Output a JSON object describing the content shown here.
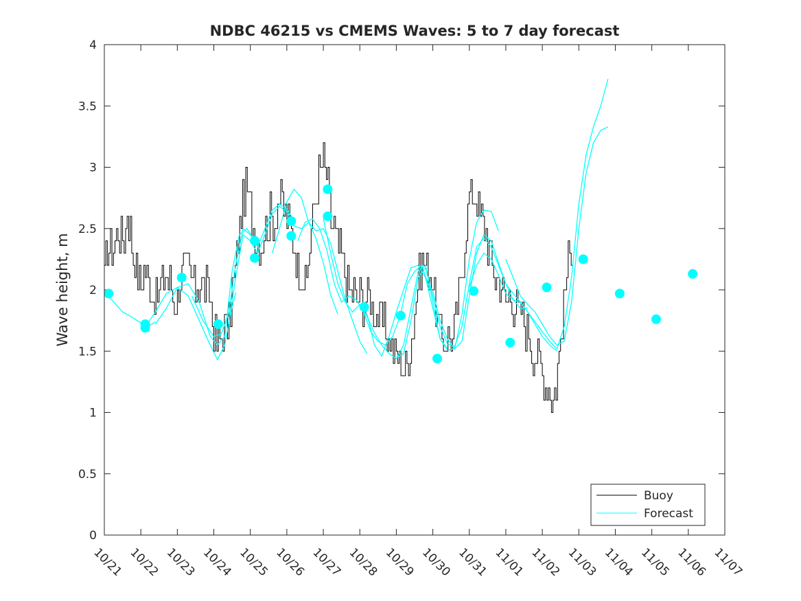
{
  "chart_data": {
    "type": "line",
    "title": "NDBC 46215 vs CMEMS Waves: 5 to 7 day forecast",
    "xlabel": "",
    "ylabel": "Wave height, m",
    "xlim": [
      0,
      17
    ],
    "ylim": [
      0,
      4
    ],
    "yticks": [
      0,
      0.5,
      1,
      1.5,
      2,
      2.5,
      3,
      3.5,
      4
    ],
    "ytick_labels": [
      "0",
      "0.5",
      "1",
      "1.5",
      "2",
      "2.5",
      "3",
      "3.5",
      "4"
    ],
    "xticks": [
      0,
      1,
      2,
      3,
      4,
      5,
      6,
      7,
      8,
      9,
      10,
      11,
      12,
      13,
      14,
      15,
      16,
      17
    ],
    "xtick_labels": [
      "10/21",
      "10/22",
      "10/23",
      "10/24",
      "10/25",
      "10/26",
      "10/27",
      "10/28",
      "10/29",
      "10/30",
      "10/31",
      "11/01",
      "11/02",
      "11/03",
      "11/04",
      "11/05",
      "11/06",
      "11/07"
    ],
    "x_unit": "days since 10/21 00:00",
    "legend": {
      "position": "bottom-right",
      "entries": [
        "Buoy",
        "Forecast"
      ]
    },
    "colors": {
      "buoy": "#000000",
      "forecast": "#00ffff",
      "axes": "#262626"
    },
    "buoy_anchors": [
      [
        0.0,
        2.1
      ],
      [
        0.1,
        2.4
      ],
      [
        0.2,
        2.3
      ],
      [
        0.3,
        2.4
      ],
      [
        0.45,
        2.5
      ],
      [
        0.55,
        2.4
      ],
      [
        0.62,
        2.7
      ],
      [
        0.7,
        2.5
      ],
      [
        0.8,
        2.3
      ],
      [
        0.9,
        2.1
      ],
      [
        1.0,
        2.0
      ],
      [
        1.1,
        2.2
      ],
      [
        1.2,
        2.1
      ],
      [
        1.35,
        1.9
      ],
      [
        1.5,
        2.0
      ],
      [
        1.65,
        2.1
      ],
      [
        1.8,
        2.05
      ],
      [
        1.95,
        1.9
      ],
      [
        2.1,
        2.1
      ],
      [
        2.2,
        2.2
      ],
      [
        2.35,
        2.1
      ],
      [
        2.5,
        2.0
      ],
      [
        2.65,
        2.1
      ],
      [
        2.8,
        2.0
      ],
      [
        2.9,
        1.9
      ],
      [
        3.0,
        1.65
      ],
      [
        3.1,
        1.55
      ],
      [
        3.2,
        1.62
      ],
      [
        3.3,
        1.75
      ],
      [
        3.4,
        1.65
      ],
      [
        3.5,
        2.0
      ],
      [
        3.6,
        2.2
      ],
      [
        3.7,
        2.5
      ],
      [
        3.8,
        2.75
      ],
      [
        3.9,
        2.8
      ],
      [
        4.0,
        2.65
      ],
      [
        4.05,
        2.5
      ],
      [
        4.15,
        2.45
      ],
      [
        4.25,
        2.35
      ],
      [
        4.35,
        2.45
      ],
      [
        4.45,
        2.55
      ],
      [
        4.55,
        2.6
      ],
      [
        4.65,
        2.5
      ],
      [
        4.75,
        2.7
      ],
      [
        4.85,
        2.8
      ],
      [
        4.95,
        2.6
      ],
      [
        5.0,
        2.6
      ],
      [
        5.1,
        2.5
      ],
      [
        5.2,
        2.35
      ],
      [
        5.3,
        2.2
      ],
      [
        5.4,
        2.1
      ],
      [
        5.5,
        2.0
      ],
      [
        5.6,
        2.3
      ],
      [
        5.7,
        2.6
      ],
      [
        5.8,
        2.8
      ],
      [
        5.9,
        3.0
      ],
      [
        6.0,
        3.05
      ],
      [
        6.1,
        2.9
      ],
      [
        6.2,
        2.6
      ],
      [
        6.3,
        2.5
      ],
      [
        6.4,
        2.35
      ],
      [
        6.5,
        2.25
      ],
      [
        6.6,
        2.1
      ],
      [
        6.7,
        2.0
      ],
      [
        6.8,
        2.0
      ],
      [
        6.9,
        1.95
      ],
      [
        7.0,
        1.95
      ],
      [
        7.1,
        1.9
      ],
      [
        7.2,
        1.95
      ],
      [
        7.3,
        1.9
      ],
      [
        7.4,
        1.85
      ],
      [
        7.5,
        1.8
      ],
      [
        7.6,
        1.75
      ],
      [
        7.7,
        1.7
      ],
      [
        7.8,
        1.6
      ],
      [
        7.9,
        1.5
      ],
      [
        8.0,
        1.45
      ],
      [
        8.1,
        1.4
      ],
      [
        8.2,
        1.35
      ],
      [
        8.3,
        1.4
      ],
      [
        8.4,
        1.6
      ],
      [
        8.5,
        1.85
      ],
      [
        8.6,
        2.1
      ],
      [
        8.7,
        2.2
      ],
      [
        8.8,
        2.2
      ],
      [
        8.9,
        2.15
      ],
      [
        9.0,
        2.05
      ],
      [
        9.1,
        1.8
      ],
      [
        9.2,
        1.65
      ],
      [
        9.3,
        1.6
      ],
      [
        9.4,
        1.6
      ],
      [
        9.5,
        1.6
      ],
      [
        9.6,
        1.65
      ],
      [
        9.7,
        1.9
      ],
      [
        9.8,
        2.2
      ],
      [
        9.9,
        2.55
      ],
      [
        10.0,
        2.75
      ],
      [
        10.1,
        2.8
      ],
      [
        10.2,
        2.7
      ],
      [
        10.3,
        2.6
      ],
      [
        10.4,
        2.55
      ],
      [
        10.5,
        2.4
      ],
      [
        10.6,
        2.2
      ],
      [
        10.7,
        2.1
      ],
      [
        10.8,
        2.05
      ],
      [
        10.9,
        2.0
      ],
      [
        11.0,
        1.95
      ],
      [
        11.1,
        1.95
      ],
      [
        11.2,
        1.9
      ],
      [
        11.3,
        1.85
      ],
      [
        11.4,
        1.8
      ],
      [
        11.5,
        1.75
      ],
      [
        11.6,
        1.65
      ],
      [
        11.7,
        1.55
      ],
      [
        11.8,
        1.45
      ],
      [
        11.9,
        1.4
      ],
      [
        12.0,
        1.3
      ],
      [
        12.1,
        1.25
      ],
      [
        12.2,
        1.2
      ],
      [
        12.28,
        1.1
      ],
      [
        12.4,
        1.3
      ],
      [
        12.5,
        1.6
      ],
      [
        12.6,
        1.9
      ],
      [
        12.7,
        2.2
      ],
      [
        12.8,
        2.4
      ],
      [
        12.85,
        2.35
      ]
    ],
    "forecast_series": [
      {
        "name": "Forecast",
        "x": [
          -0.1,
          0.0,
          0.2,
          0.5,
          0.8,
          1.0,
          1.2,
          1.4
        ],
        "y": [
          2.0,
          1.97,
          1.92,
          1.82,
          1.77,
          1.73,
          1.7,
          1.74
        ]
      },
      {
        "name": "Forecast",
        "x": [
          1.0,
          1.15,
          1.4,
          1.7,
          2.0,
          2.3,
          2.6,
          2.9,
          3.1,
          3.3,
          3.45,
          3.6
        ],
        "y": [
          1.7,
          1.71,
          1.82,
          1.97,
          2.02,
          1.95,
          1.75,
          1.55,
          1.43,
          1.55,
          1.8,
          1.98
        ]
      },
      {
        "name": "Forecast",
        "x": [
          1.4,
          1.7,
          2.0,
          2.3,
          2.6,
          2.9,
          3.1,
          3.3,
          3.5,
          3.7,
          3.9,
          4.0,
          4.2
        ],
        "y": [
          1.72,
          1.85,
          2.02,
          2.05,
          1.9,
          1.62,
          1.55,
          1.62,
          2.15,
          2.45,
          2.5,
          2.46,
          2.35
        ]
      },
      {
        "name": "Forecast",
        "x": [
          2.4,
          2.7,
          3.0,
          3.2,
          3.4,
          3.6,
          3.8,
          4.0,
          4.2,
          4.4,
          4.6,
          4.8,
          5.0,
          5.2
        ],
        "y": [
          1.95,
          1.75,
          1.62,
          1.64,
          1.8,
          2.2,
          2.5,
          2.45,
          2.35,
          2.5,
          2.65,
          2.7,
          2.66,
          2.56
        ]
      },
      {
        "name": "Forecast",
        "x": [
          3.4,
          3.6,
          3.8,
          4.0,
          4.2,
          4.4,
          4.6,
          4.8,
          5.0,
          5.2,
          5.4,
          5.6,
          5.8,
          6.0,
          6.2,
          6.4
        ],
        "y": [
          1.72,
          2.1,
          2.45,
          2.4,
          2.3,
          2.45,
          2.62,
          2.68,
          2.64,
          2.52,
          2.5,
          2.55,
          2.42,
          2.22,
          1.96,
          1.8
        ]
      },
      {
        "name": "Forecast",
        "x": [
          4.6,
          4.8,
          5.0,
          5.2,
          5.4,
          5.6,
          5.8,
          6.0,
          6.2,
          6.4,
          6.6,
          6.8,
          7.0,
          7.2
        ],
        "y": [
          2.3,
          2.5,
          2.72,
          2.82,
          2.75,
          2.55,
          2.48,
          2.5,
          2.38,
          2.15,
          1.92,
          1.75,
          1.58,
          1.48
        ]
      },
      {
        "name": "Forecast",
        "x": [
          5.3,
          5.5,
          5.7,
          5.9,
          6.1,
          6.3,
          6.5,
          6.7,
          6.9,
          7.1,
          7.3,
          7.5,
          7.7,
          7.9,
          8.1,
          8.3,
          8.5,
          8.7,
          8.9
        ],
        "y": [
          2.4,
          2.55,
          2.58,
          2.5,
          2.32,
          2.05,
          1.9,
          1.95,
          1.92,
          1.82,
          1.66,
          1.58,
          1.55,
          1.62,
          1.78,
          2.05,
          2.15,
          2.2,
          2.02
        ]
      },
      {
        "name": "Forecast",
        "x": [
          6.0,
          6.2,
          6.4,
          6.6,
          6.8,
          7.0,
          7.2,
          7.4,
          7.6,
          7.8,
          8.0,
          8.2,
          8.4,
          8.6,
          8.8,
          9.0,
          9.2,
          9.4
        ],
        "y": [
          2.58,
          2.3,
          2.05,
          1.9,
          1.82,
          1.88,
          1.78,
          1.65,
          1.55,
          1.48,
          1.44,
          1.55,
          1.85,
          2.15,
          2.2,
          1.9,
          1.6,
          1.52
        ]
      },
      {
        "name": "Forecast",
        "x": [
          7.0,
          7.2,
          7.4,
          7.6,
          7.8,
          8.0,
          8.2,
          8.4,
          8.6,
          8.8,
          9.0,
          9.2,
          9.4,
          9.6,
          9.8,
          10.0,
          10.2,
          10.4,
          10.6,
          10.8
        ],
        "y": [
          1.86,
          1.8,
          1.55,
          1.46,
          1.62,
          1.82,
          2.0,
          2.18,
          2.2,
          2.1,
          1.85,
          1.6,
          1.51,
          1.52,
          1.8,
          2.25,
          2.55,
          2.65,
          2.64,
          2.48
        ]
      },
      {
        "name": "Forecast",
        "x": [
          8.0,
          8.2,
          8.4,
          8.6,
          8.8,
          9.0,
          9.2,
          9.4,
          9.6,
          9.8,
          10.0,
          10.2,
          10.4,
          10.6,
          10.8,
          11.0,
          11.2,
          11.4,
          11.6
        ],
        "y": [
          1.44,
          1.48,
          1.75,
          2.1,
          2.18,
          1.95,
          1.7,
          1.56,
          1.54,
          1.7,
          2.05,
          2.35,
          2.42,
          2.35,
          2.2,
          2.05,
          1.92,
          1.85,
          1.85
        ]
      },
      {
        "name": "Forecast",
        "x": [
          9.0,
          9.2,
          9.4,
          9.6,
          9.8,
          10.0,
          10.2,
          10.4,
          10.6,
          10.8,
          11.0,
          11.2,
          11.4,
          11.6,
          11.8,
          12.0,
          12.2,
          12.4
        ],
        "y": [
          1.99,
          1.75,
          1.6,
          1.52,
          1.58,
          1.95,
          2.3,
          2.45,
          2.4,
          2.22,
          2.05,
          1.97,
          1.9,
          1.82,
          1.72,
          1.62,
          1.55,
          1.5
        ]
      },
      {
        "name": "Forecast",
        "x": [
          10.0,
          10.2,
          10.4,
          10.6,
          10.8,
          11.0,
          11.2,
          11.4,
          11.6,
          11.8,
          12.0,
          12.2,
          12.4,
          12.6,
          12.8,
          13.0,
          13.2,
          13.4,
          13.6,
          13.8
        ],
        "y": [
          2.02,
          2.2,
          2.3,
          2.25,
          2.12,
          1.97,
          1.92,
          1.9,
          1.82,
          1.74,
          1.66,
          1.58,
          1.52,
          1.7,
          2.1,
          2.7,
          3.1,
          3.33,
          3.5,
          3.72
        ]
      },
      {
        "name": "Forecast",
        "x": [
          11.0,
          11.2,
          11.4,
          11.6,
          11.8,
          12.0,
          12.2,
          12.4,
          12.6,
          12.8,
          13.0,
          13.2,
          13.4,
          13.6,
          13.8
        ],
        "y": [
          2.25,
          2.1,
          1.95,
          1.88,
          1.82,
          1.72,
          1.62,
          1.55,
          1.58,
          1.9,
          2.5,
          2.95,
          3.2,
          3.3,
          3.33
        ]
      }
    ],
    "forecast_markers": [
      {
        "x": 0.12,
        "y": 1.97
      },
      {
        "x": 1.12,
        "y": 1.72
      },
      {
        "x": 1.12,
        "y": 1.69
      },
      {
        "x": 2.12,
        "y": 2.1
      },
      {
        "x": 3.12,
        "y": 1.72
      },
      {
        "x": 4.12,
        "y": 2.4
      },
      {
        "x": 4.12,
        "y": 2.26
      },
      {
        "x": 5.12,
        "y": 2.56
      },
      {
        "x": 5.12,
        "y": 2.44
      },
      {
        "x": 6.12,
        "y": 2.82
      },
      {
        "x": 6.12,
        "y": 2.6
      },
      {
        "x": 7.12,
        "y": 1.86
      },
      {
        "x": 8.12,
        "y": 1.79
      },
      {
        "x": 9.12,
        "y": 1.44
      },
      {
        "x": 10.12,
        "y": 1.99
      },
      {
        "x": 11.12,
        "y": 1.57
      },
      {
        "x": 12.12,
        "y": 2.02
      },
      {
        "x": 13.12,
        "y": 2.25
      },
      {
        "x": 14.12,
        "y": 1.97
      },
      {
        "x": 15.12,
        "y": 1.76
      },
      {
        "x": 16.12,
        "y": 2.13
      }
    ]
  }
}
